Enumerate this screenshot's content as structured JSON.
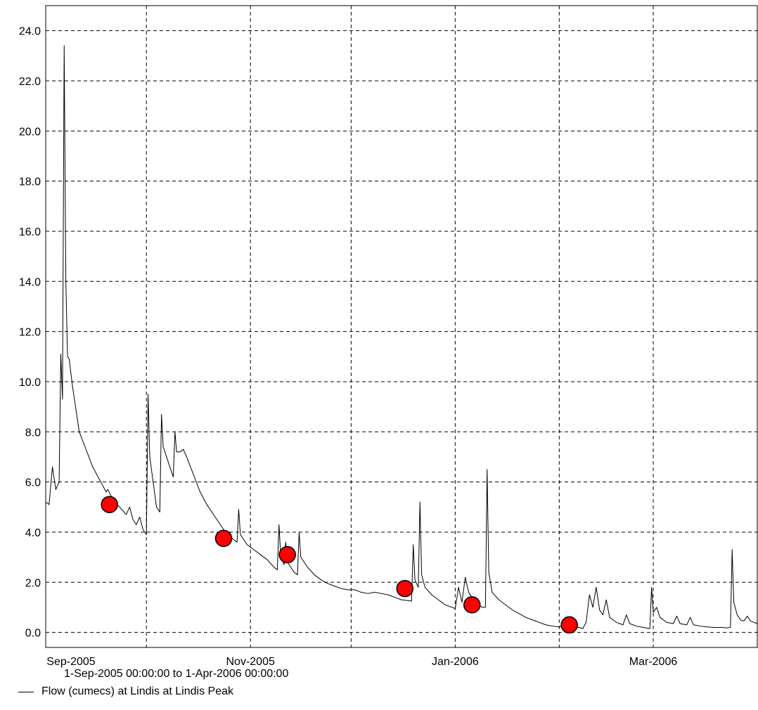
{
  "chart_data": {
    "type": "line",
    "title": "",
    "xlabel": "",
    "ylabel": "",
    "x_range": [
      "2005-09-01T00:00:00",
      "2006-04-01T00:00:00"
    ],
    "ylim": [
      -0.6,
      25.0
    ],
    "y_ticks": [
      0.0,
      2.0,
      4.0,
      6.0,
      8.0,
      10.0,
      12.0,
      14.0,
      16.0,
      18.0,
      20.0,
      22.0,
      24.0
    ],
    "y_tick_labels": [
      "0.0",
      "2.0",
      "4.0",
      "6.0",
      "8.0",
      "10.0",
      "12.0",
      "14.0",
      "16.0",
      "18.0",
      "20.0",
      "22.0",
      "24.0"
    ],
    "x_ticks": [
      {
        "date": "2005-09-01",
        "label": "Sep-2005"
      },
      {
        "date": "2005-10-01",
        "label": ""
      },
      {
        "date": "2005-11-01",
        "label": "Nov-2005"
      },
      {
        "date": "2005-12-01",
        "label": ""
      },
      {
        "date": "2006-01-01",
        "label": "Jan-2006"
      },
      {
        "date": "2006-02-01",
        "label": ""
      },
      {
        "date": "2006-03-01",
        "label": "Mar-2006"
      }
    ],
    "grid": true,
    "date_range_label": "1-Sep-2005 00:00:00 to  1-Apr-2006 00:00:00",
    "legend": {
      "label": "Flow (cumecs) at Lindis at Lindis Peak",
      "position": "bottom-left"
    },
    "series": [
      {
        "name": "Flow (cumecs) at Lindis at Lindis Peak",
        "color": "#000000",
        "points": [
          [
            "2005-09-01",
            5.2
          ],
          [
            "2005-09-02",
            5.1
          ],
          [
            "2005-09-03",
            6.6
          ],
          [
            "2005-09-04",
            5.7
          ],
          [
            "2005-09-05",
            6.0
          ],
          [
            "2005-09-05T12:00",
            11.1
          ],
          [
            "2005-09-06",
            9.3
          ],
          [
            "2005-09-06T12:00",
            23.4
          ],
          [
            "2005-09-07",
            14.0
          ],
          [
            "2005-09-07T12:00",
            11.0
          ],
          [
            "2005-09-08",
            10.9
          ],
          [
            "2005-09-09",
            9.8
          ],
          [
            "2005-09-10",
            8.9
          ],
          [
            "2005-09-11",
            8.0
          ],
          [
            "2005-09-13",
            7.3
          ],
          [
            "2005-09-15",
            6.6
          ],
          [
            "2005-09-17",
            6.1
          ],
          [
            "2005-09-19",
            5.6
          ],
          [
            "2005-09-19T12:00",
            5.7
          ],
          [
            "2005-09-21",
            5.3
          ],
          [
            "2005-09-23",
            5.0
          ],
          [
            "2005-09-25",
            4.7
          ],
          [
            "2005-09-26",
            5.0
          ],
          [
            "2005-09-27",
            4.5
          ],
          [
            "2005-09-28",
            4.3
          ],
          [
            "2005-09-29",
            4.6
          ],
          [
            "2005-09-30",
            4.1
          ],
          [
            "2005-10-01",
            3.9
          ],
          [
            "2005-10-01T12:00",
            9.5
          ],
          [
            "2005-10-02",
            7.0
          ],
          [
            "2005-10-03",
            6.0
          ],
          [
            "2005-10-04",
            5.0
          ],
          [
            "2005-10-05",
            4.8
          ],
          [
            "2005-10-05T12:00",
            8.7
          ],
          [
            "2005-10-06",
            7.4
          ],
          [
            "2005-10-07",
            7.0
          ],
          [
            "2005-10-08",
            6.6
          ],
          [
            "2005-10-09",
            6.2
          ],
          [
            "2005-10-09T12:00",
            8.0
          ],
          [
            "2005-10-10",
            7.2
          ],
          [
            "2005-10-11",
            7.2
          ],
          [
            "2005-10-12",
            7.3
          ],
          [
            "2005-10-13",
            7.0
          ],
          [
            "2005-10-15",
            6.3
          ],
          [
            "2005-10-17",
            5.6
          ],
          [
            "2005-10-19",
            5.1
          ],
          [
            "2005-10-21",
            4.7
          ],
          [
            "2005-10-23",
            4.3
          ],
          [
            "2005-10-25",
            3.9
          ],
          [
            "2005-10-27",
            3.7
          ],
          [
            "2005-10-28",
            3.6
          ],
          [
            "2005-10-28T12:00",
            4.9
          ],
          [
            "2005-10-29",
            3.9
          ],
          [
            "2005-10-31",
            3.5
          ],
          [
            "2005-11-02",
            3.3
          ],
          [
            "2005-11-04",
            3.1
          ],
          [
            "2005-11-06",
            2.9
          ],
          [
            "2005-11-08",
            2.6
          ],
          [
            "2005-11-09",
            2.5
          ],
          [
            "2005-11-09T12:00",
            4.3
          ],
          [
            "2005-11-10",
            3.1
          ],
          [
            "2005-11-11",
            2.7
          ],
          [
            "2005-11-11T12:00",
            3.6
          ],
          [
            "2005-11-12",
            2.8
          ],
          [
            "2005-11-14",
            2.4
          ],
          [
            "2005-11-15",
            2.3
          ],
          [
            "2005-11-15T12:00",
            4.0
          ],
          [
            "2005-11-16",
            3.0
          ],
          [
            "2005-11-18",
            2.6
          ],
          [
            "2005-11-20",
            2.3
          ],
          [
            "2005-11-22",
            2.1
          ],
          [
            "2005-11-24",
            1.95
          ],
          [
            "2005-11-26",
            1.85
          ],
          [
            "2005-11-28",
            1.75
          ],
          [
            "2005-11-30",
            1.7
          ],
          [
            "2005-12-02",
            1.7
          ],
          [
            "2005-12-04",
            1.6
          ],
          [
            "2005-12-06",
            1.55
          ],
          [
            "2005-12-08",
            1.6
          ],
          [
            "2005-12-10",
            1.55
          ],
          [
            "2005-12-12",
            1.5
          ],
          [
            "2005-12-14",
            1.4
          ],
          [
            "2005-12-16",
            1.3
          ],
          [
            "2005-12-19",
            1.25
          ],
          [
            "2005-12-19T12:00",
            3.5
          ],
          [
            "2005-12-20",
            2.1
          ],
          [
            "2005-12-21",
            1.8
          ],
          [
            "2005-12-21T12:00",
            5.2
          ],
          [
            "2005-12-22",
            2.3
          ],
          [
            "2005-12-23",
            1.8
          ],
          [
            "2005-12-25",
            1.5
          ],
          [
            "2005-12-27",
            1.3
          ],
          [
            "2005-12-29",
            1.1
          ],
          [
            "2005-12-31",
            1.0
          ],
          [
            "2006-01-01",
            0.95
          ],
          [
            "2006-01-02",
            1.8
          ],
          [
            "2006-01-03",
            1.2
          ],
          [
            "2006-01-04",
            2.2
          ],
          [
            "2006-01-05",
            1.6
          ],
          [
            "2006-01-07",
            1.2
          ],
          [
            "2006-01-09",
            1.0
          ],
          [
            "2006-01-10",
            1.0
          ],
          [
            "2006-01-10T12:00",
            6.5
          ],
          [
            "2006-01-11",
            2.4
          ],
          [
            "2006-01-12",
            1.6
          ],
          [
            "2006-01-14",
            1.3
          ],
          [
            "2006-01-16",
            1.1
          ],
          [
            "2006-01-18",
            0.9
          ],
          [
            "2006-01-20",
            0.75
          ],
          [
            "2006-01-22",
            0.6
          ],
          [
            "2006-01-24",
            0.5
          ],
          [
            "2006-01-26",
            0.4
          ],
          [
            "2006-01-28",
            0.3
          ],
          [
            "2006-01-30",
            0.25
          ],
          [
            "2006-02-01",
            0.22
          ],
          [
            "2006-02-03",
            0.3
          ],
          [
            "2006-02-05",
            0.25
          ],
          [
            "2006-02-07",
            0.2
          ],
          [
            "2006-02-08",
            0.15
          ],
          [
            "2006-02-09",
            0.4
          ],
          [
            "2006-02-10",
            1.5
          ],
          [
            "2006-02-11",
            1.0
          ],
          [
            "2006-02-12",
            1.8
          ],
          [
            "2006-02-13",
            0.9
          ],
          [
            "2006-02-14",
            0.7
          ],
          [
            "2006-02-15",
            1.3
          ],
          [
            "2006-02-16",
            0.6
          ],
          [
            "2006-02-18",
            0.4
          ],
          [
            "2006-02-20",
            0.3
          ],
          [
            "2006-02-21",
            0.7
          ],
          [
            "2006-02-22",
            0.35
          ],
          [
            "2006-02-24",
            0.25
          ],
          [
            "2006-02-26",
            0.2
          ],
          [
            "2006-02-28",
            0.15
          ],
          [
            "2006-02-28T12:00",
            1.8
          ],
          [
            "2006-03-01",
            0.8
          ],
          [
            "2006-03-02",
            1.0
          ],
          [
            "2006-03-03",
            0.6
          ],
          [
            "2006-03-05",
            0.4
          ],
          [
            "2006-03-07",
            0.35
          ],
          [
            "2006-03-08",
            0.65
          ],
          [
            "2006-03-09",
            0.35
          ],
          [
            "2006-03-11",
            0.3
          ],
          [
            "2006-03-12",
            0.6
          ],
          [
            "2006-03-13",
            0.3
          ],
          [
            "2006-03-15",
            0.25
          ],
          [
            "2006-03-17",
            0.22
          ],
          [
            "2006-03-19",
            0.2
          ],
          [
            "2006-03-21",
            0.2
          ],
          [
            "2006-03-23",
            0.18
          ],
          [
            "2006-03-24",
            0.2
          ],
          [
            "2006-03-24T12:00",
            3.3
          ],
          [
            "2006-03-25",
            1.2
          ],
          [
            "2006-03-26",
            0.7
          ],
          [
            "2006-03-27",
            0.5
          ],
          [
            "2006-03-28",
            0.45
          ],
          [
            "2006-03-29",
            0.65
          ],
          [
            "2006-03-30",
            0.45
          ],
          [
            "2006-04-01",
            0.35
          ]
        ]
      },
      {
        "name": "",
        "type": "scatter",
        "color": "#ff0000",
        "points": [
          [
            "2005-09-20",
            5.1
          ],
          [
            "2005-10-24",
            3.75
          ],
          [
            "2005-11-12",
            3.1
          ],
          [
            "2005-12-17",
            1.75
          ],
          [
            "2006-01-06",
            1.1
          ],
          [
            "2006-02-04",
            0.3
          ]
        ]
      }
    ]
  }
}
